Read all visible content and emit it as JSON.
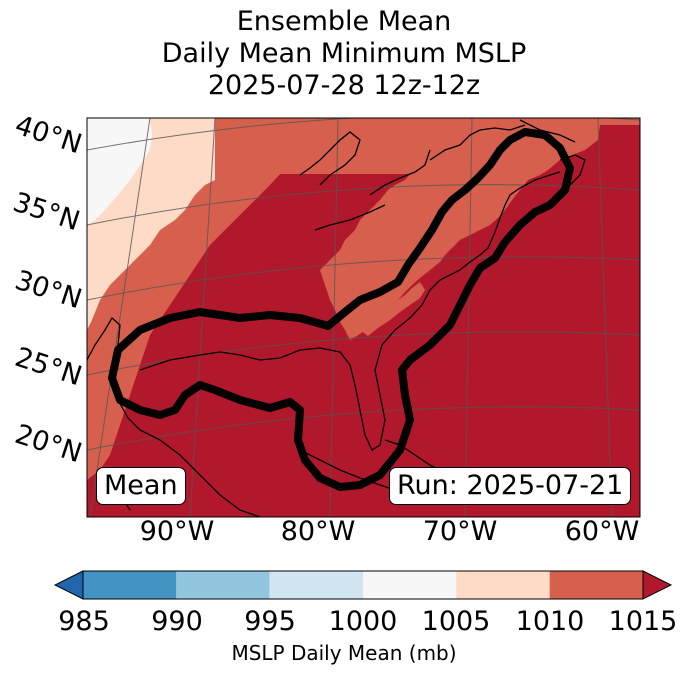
{
  "chart_data": {
    "type": "heatmap",
    "title_lines": [
      "Ensemble Mean",
      "Daily Mean Minimum MSLP",
      "2025-07-28 12z-12z"
    ],
    "lat_ticks": [
      "40°N",
      "35°N",
      "30°N",
      "25°N",
      "20°N"
    ],
    "lon_ticks": [
      "90°W",
      "80°W",
      "70°W",
      "60°W"
    ],
    "map_extent": {
      "lon": [
        -96,
        -60
      ],
      "lat": [
        17,
        42
      ]
    },
    "mean_label": "Mean",
    "run_label": "Run: 2025-07-21",
    "colorbar": {
      "label": "MSLP Daily Mean (mb)",
      "ticks": [
        "985",
        "990",
        "995",
        "1000",
        "1005",
        "1010",
        "1015"
      ],
      "bins": [
        {
          "range": [
            985,
            990
          ],
          "color": "#4393c3"
        },
        {
          "range": [
            990,
            995
          ],
          "color": "#92c5de"
        },
        {
          "range": [
            995,
            1000
          ],
          "color": "#d1e5f0"
        },
        {
          "range": [
            1000,
            1005
          ],
          "color": "#f7f7f7"
        },
        {
          "range": [
            1005,
            1010
          ],
          "color": "#fddbc7"
        },
        {
          "range": [
            1010,
            1015
          ],
          "color": "#d6604d"
        }
      ],
      "under_color": "#2166ac",
      "over_color": "#b2182b"
    },
    "contour": {
      "description": "black outlined ensemble region along Gulf Coast and US East Coast"
    }
  }
}
